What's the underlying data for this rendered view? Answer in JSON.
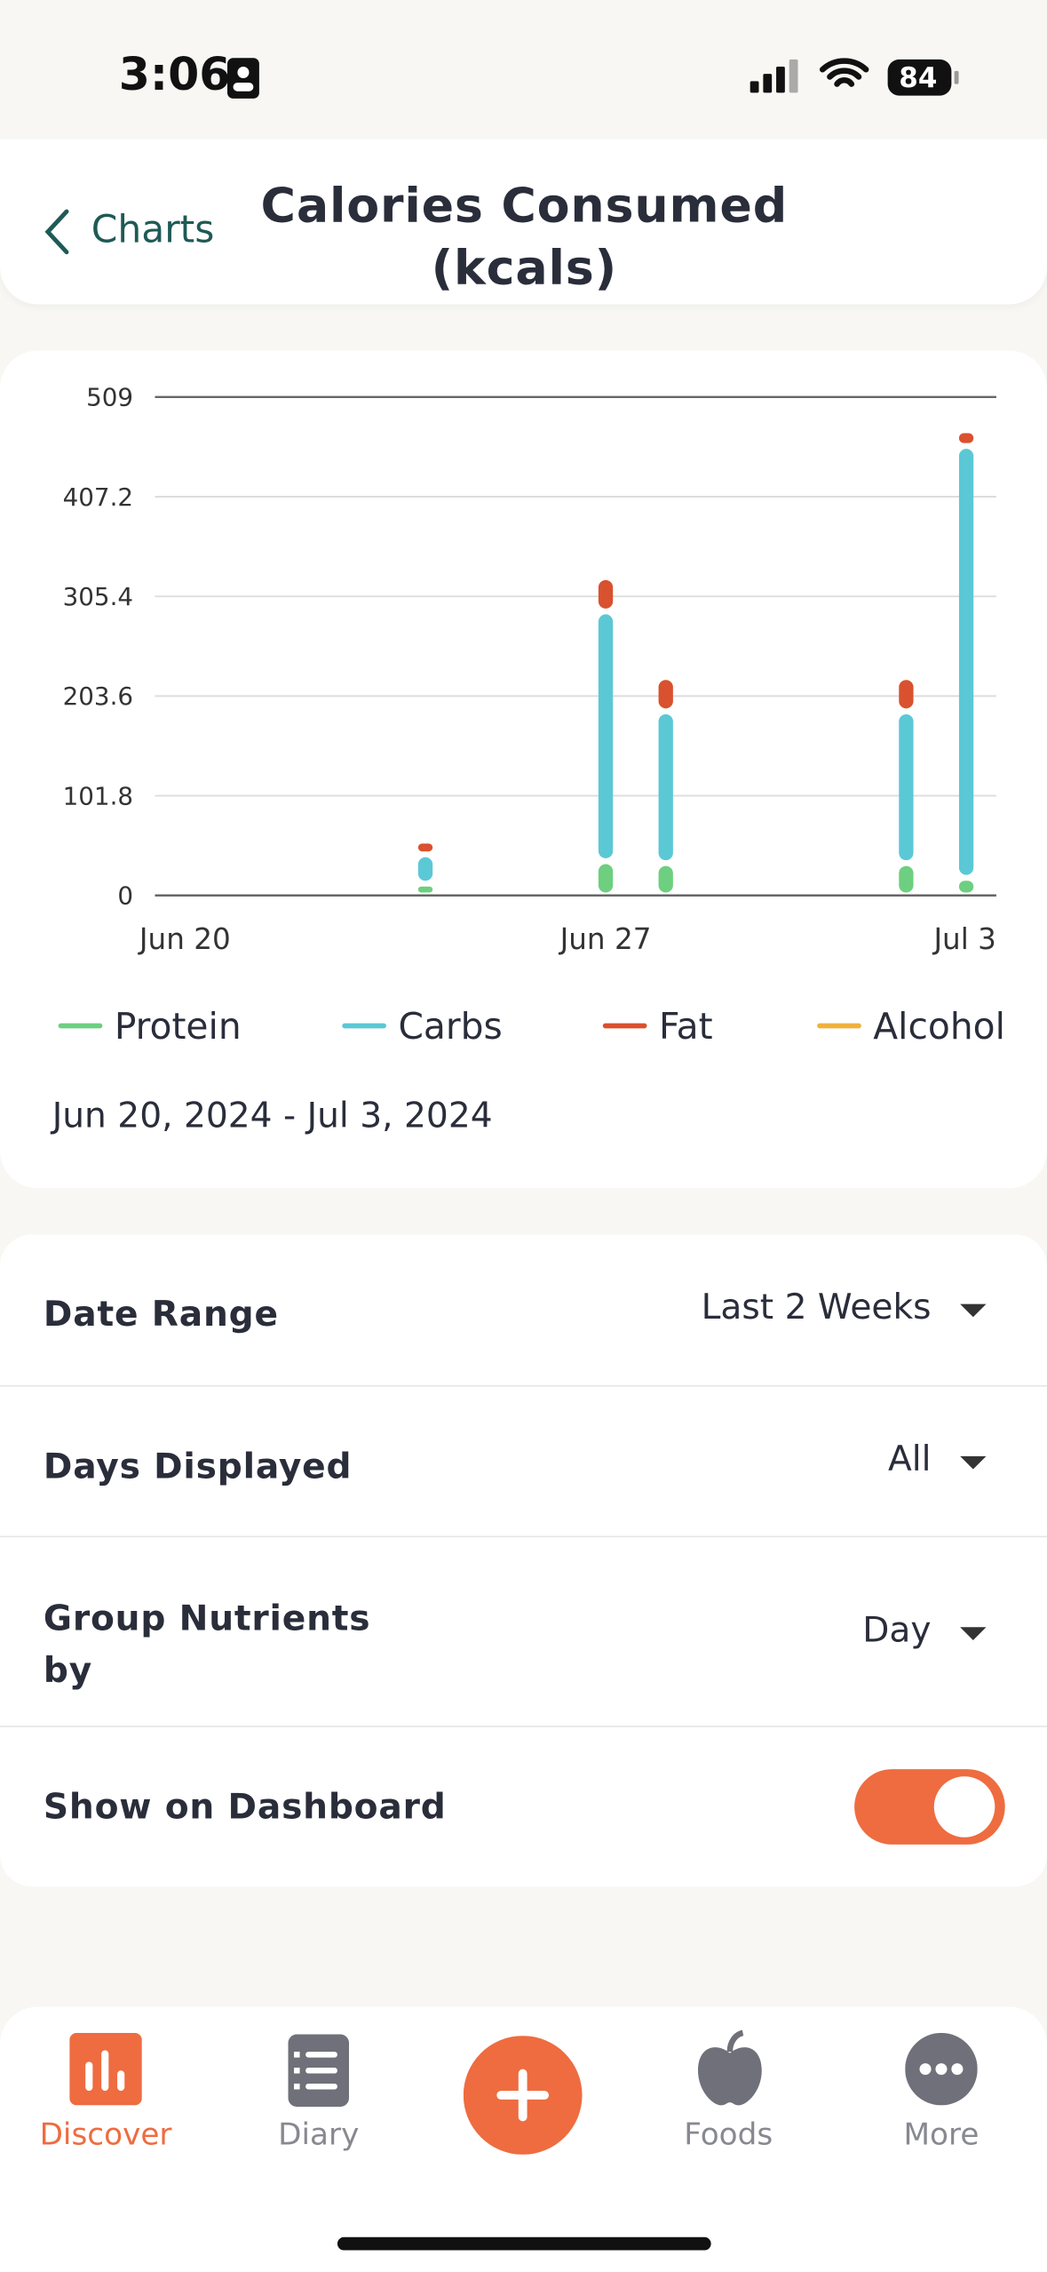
{
  "status": {
    "time": "3:06",
    "battery": "84"
  },
  "header": {
    "back": "Charts",
    "title": "Calories Consumed (kcals)"
  },
  "chart_data": {
    "type": "bar",
    "stacked": true,
    "categories": [
      "Jun 20",
      null,
      null,
      null,
      null,
      null,
      null,
      "Jun 27",
      null,
      null,
      null,
      null,
      null,
      "Jul 3"
    ],
    "series": [
      {
        "name": "Protein",
        "color": "#6dcf7f",
        "values": [
          null,
          null,
          null,
          null,
          12,
          null,
          null,
          35,
          33,
          null,
          null,
          null,
          33,
          18
        ]
      },
      {
        "name": "Carbs",
        "color": "#5bc8d6",
        "values": [
          null,
          null,
          null,
          null,
          30,
          null,
          null,
          255,
          155,
          null,
          null,
          null,
          155,
          441
        ]
      },
      {
        "name": "Fat",
        "color": "#d9512e",
        "values": [
          null,
          null,
          null,
          null,
          14,
          null,
          null,
          35,
          35,
          null,
          null,
          null,
          35,
          16
        ]
      },
      {
        "name": "Alcohol",
        "color": "#f0b13c",
        "values": [
          null,
          null,
          null,
          null,
          0,
          null,
          null,
          0,
          0,
          null,
          null,
          null,
          0,
          0
        ]
      }
    ],
    "ylim": [
      0,
      509
    ],
    "yticks": [
      0,
      101.8,
      203.6,
      305.4,
      407.2,
      509
    ],
    "grid": true,
    "legend": "bottom"
  },
  "date_range_label": "Jun 20, 2024 - Jul 3, 2024",
  "settings": {
    "rows": [
      {
        "label": "Date Range",
        "value": "Last 2 Weeks"
      },
      {
        "label": "Days Displayed",
        "value": "All"
      },
      {
        "label": "Group Nutrients by",
        "value": "Day"
      }
    ],
    "toggle": {
      "label": "Show on Dashboard",
      "on": true
    }
  },
  "nav": {
    "items": [
      "Discover",
      "Diary",
      "Foods",
      "More"
    ],
    "active": 0
  }
}
